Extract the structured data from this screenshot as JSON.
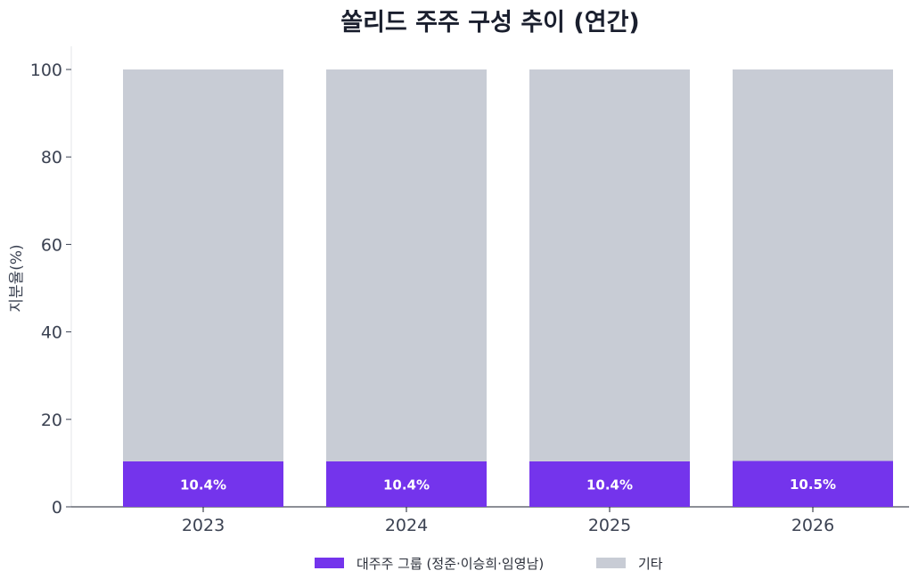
{
  "chart_data": {
    "type": "bar",
    "stacked": true,
    "title": "쏠리드 주주 구성 추이 (연간)",
    "xlabel": "",
    "ylabel": "지분율(%)",
    "ylim": [
      0,
      100
    ],
    "yticks": [
      0,
      20,
      40,
      60,
      80,
      100
    ],
    "categories": [
      "2023",
      "2024",
      "2025",
      "2026"
    ],
    "grid": false,
    "legend_position": "bottom-center",
    "series": [
      {
        "name": "대주주 그룹 (정준·이승희·임영남)",
        "values": [
          10.4,
          10.4,
          10.4,
          10.5
        ],
        "labels": [
          "10.4%",
          "10.4%",
          "10.4%",
          "10.5%"
        ],
        "color": "#7434ec"
      },
      {
        "name": "기타",
        "values": [
          89.6,
          89.6,
          89.6,
          89.5
        ],
        "color": "#c8ccd5"
      }
    ]
  }
}
